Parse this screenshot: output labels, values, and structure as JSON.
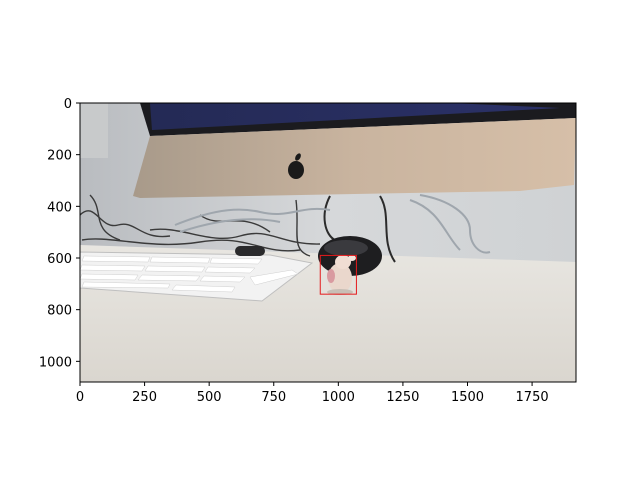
{
  "chart_data": {
    "type": "image",
    "image_width": 1920,
    "image_height": 1080,
    "xlim": [
      0,
      1920
    ],
    "ylim": [
      1080,
      0
    ],
    "xticks": [
      0,
      250,
      500,
      750,
      1000,
      1250,
      1500,
      1750
    ],
    "yticks": [
      0,
      200,
      400,
      600,
      800,
      1000
    ],
    "xtick_labels": [
      "0",
      "250",
      "500",
      "750",
      "1000",
      "1250",
      "1500",
      "1750"
    ],
    "ytick_labels": [
      "0",
      "200",
      "400",
      "600",
      "800",
      "1000"
    ],
    "grid": false,
    "annotation_box": {
      "x0": 930,
      "y0": 590,
      "x1": 1070,
      "y1": 740,
      "color": "#e41a1c"
    },
    "scene": {
      "objects": [
        "imac-monitor",
        "apple-logo",
        "keyboard",
        "computer-mouse",
        "cables",
        "toy-figurine"
      ]
    }
  }
}
